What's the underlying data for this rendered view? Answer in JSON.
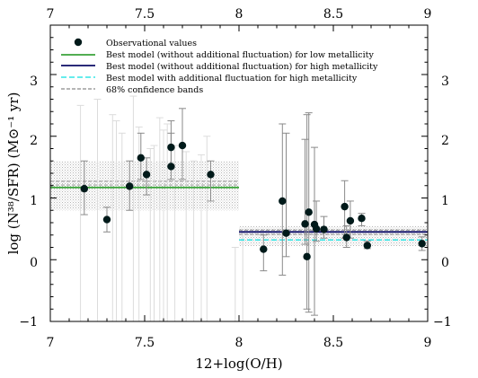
{
  "chart_data": {
    "type": "scatter",
    "xlabel": "12+log(O/H)",
    "ylabel": "log (N³⁸/SFR) (M⊙⁻¹ yr)",
    "xlim": [
      7,
      9
    ],
    "ylim": [
      -1,
      3.8
    ],
    "x_ticks": [
      "7",
      "7.5",
      "8",
      "8.5",
      "9"
    ],
    "y_ticks": [
      "−1",
      "0",
      "1",
      "2",
      "3"
    ],
    "colors": {
      "points": "#001a1a",
      "errorbar": "#8a8a8a",
      "faint_errorbar": "#dcdcdc",
      "low_model": "#3aa33a",
      "high_model": "#0b0b66",
      "high_fluct_model": "#33e5e5",
      "band": "#9a9a9a",
      "hatch": "#b5b5b5"
    },
    "legend": [
      {
        "key": "points",
        "label": "Observational values"
      },
      {
        "key": "low_model",
        "label": "Best model (without additional fluctuation) for low metallicity"
      },
      {
        "key": "high_model",
        "label": "Best model (without additional fluctuation) for high metallicity"
      },
      {
        "key": "high_fluct_model",
        "label": "Best model with additional fluctuation for high metallicity"
      },
      {
        "key": "band",
        "label": "68% confidence bands"
      }
    ],
    "low_metallicity_model": {
      "x_range": [
        7,
        8
      ],
      "y": 1.17,
      "band": [
        0.8,
        1.6
      ],
      "confidence_lines": [
        1.21,
        1.27
      ]
    },
    "high_metallicity_model": {
      "x_range": [
        8,
        9
      ],
      "y": 0.45,
      "fluct_y": 0.32,
      "band": [
        0.22,
        0.55
      ],
      "confidence_lines": [
        0.41,
        0.48
      ]
    },
    "points": [
      {
        "x": 7.18,
        "y": 1.15,
        "lo": 0.73,
        "hi": 1.6
      },
      {
        "x": 7.3,
        "y": 0.65,
        "lo": 0.45,
        "hi": 0.85
      },
      {
        "x": 7.42,
        "y": 1.19,
        "lo": 0.8,
        "hi": 1.6
      },
      {
        "x": 7.48,
        "y": 1.65,
        "lo": 1.3,
        "hi": 2.05
      },
      {
        "x": 7.51,
        "y": 1.38,
        "lo": 1.05,
        "hi": 1.65
      },
      {
        "x": 7.64,
        "y": 1.82,
        "lo": 1.5,
        "hi": 2.25
      },
      {
        "x": 7.64,
        "y": 1.51,
        "lo": 1.3,
        "hi": 2.05
      },
      {
        "x": 7.7,
        "y": 1.85,
        "lo": 1.3,
        "hi": 2.45
      },
      {
        "x": 7.85,
        "y": 1.38,
        "lo": 0.95,
        "hi": 1.6
      },
      {
        "x": 8.13,
        "y": 0.17,
        "lo": -0.18,
        "hi": 0.4
      },
      {
        "x": 8.23,
        "y": 0.95,
        "lo": -0.25,
        "hi": 2.2
      },
      {
        "x": 8.25,
        "y": 0.43,
        "lo": 0.05,
        "hi": 2.05
      },
      {
        "x": 8.35,
        "y": 0.58,
        "lo": 0.25,
        "hi": 1.95
      },
      {
        "x": 8.37,
        "y": 0.77,
        "lo": -0.85,
        "hi": 2.38
      },
      {
        "x": 8.36,
        "y": 0.05,
        "lo": -0.8,
        "hi": 2.35
      },
      {
        "x": 8.4,
        "y": 0.57,
        "lo": -0.9,
        "hi": 1.82
      },
      {
        "x": 8.41,
        "y": 0.5,
        "lo": 0.3,
        "hi": 0.95
      },
      {
        "x": 8.45,
        "y": 0.49,
        "lo": 0.35,
        "hi": 0.7
      },
      {
        "x": 8.56,
        "y": 0.86,
        "lo": 0.35,
        "hi": 1.28
      },
      {
        "x": 8.57,
        "y": 0.36,
        "lo": 0.2,
        "hi": 0.55
      },
      {
        "x": 8.59,
        "y": 0.63,
        "lo": 0.35,
        "hi": 0.95
      },
      {
        "x": 8.65,
        "y": 0.67,
        "lo": 0.55,
        "hi": 0.75
      },
      {
        "x": 8.68,
        "y": 0.23,
        "lo": 0.18,
        "hi": 0.3
      },
      {
        "x": 8.97,
        "y": 0.26,
        "lo": 0.15,
        "hi": 0.37
      }
    ],
    "faint_errorbars": [
      {
        "x": 7.16,
        "lo": -1.0,
        "hi": 2.5
      },
      {
        "x": 7.25,
        "lo": -1.0,
        "hi": 2.6
      },
      {
        "x": 7.33,
        "lo": -1.0,
        "hi": 2.35
      },
      {
        "x": 7.35,
        "lo": -1.0,
        "hi": 2.25
      },
      {
        "x": 7.38,
        "lo": -1.0,
        "hi": 2.05
      },
      {
        "x": 7.44,
        "lo": -1.0,
        "hi": 2.65
      },
      {
        "x": 7.47,
        "lo": -1.0,
        "hi": 2.15
      },
      {
        "x": 7.53,
        "lo": -1.0,
        "hi": 1.8
      },
      {
        "x": 7.55,
        "lo": -1.0,
        "hi": 1.85
      },
      {
        "x": 7.58,
        "lo": -1.0,
        "hi": 2.3
      },
      {
        "x": 7.6,
        "lo": -1.0,
        "hi": 2.1
      },
      {
        "x": 7.62,
        "lo": -1.0,
        "hi": 2.2
      },
      {
        "x": 7.66,
        "lo": -1.0,
        "hi": 1.85
      },
      {
        "x": 7.72,
        "lo": -1.0,
        "hi": 1.75
      },
      {
        "x": 7.76,
        "lo": -1.0,
        "hi": 1.6
      },
      {
        "x": 7.8,
        "lo": -1.0,
        "hi": 1.7
      },
      {
        "x": 7.83,
        "lo": -1.0,
        "hi": 2.0
      },
      {
        "x": 7.98,
        "lo": -1.0,
        "hi": 0.2
      },
      {
        "x": 8.02,
        "lo": -1.0,
        "hi": 0.45
      }
    ]
  }
}
